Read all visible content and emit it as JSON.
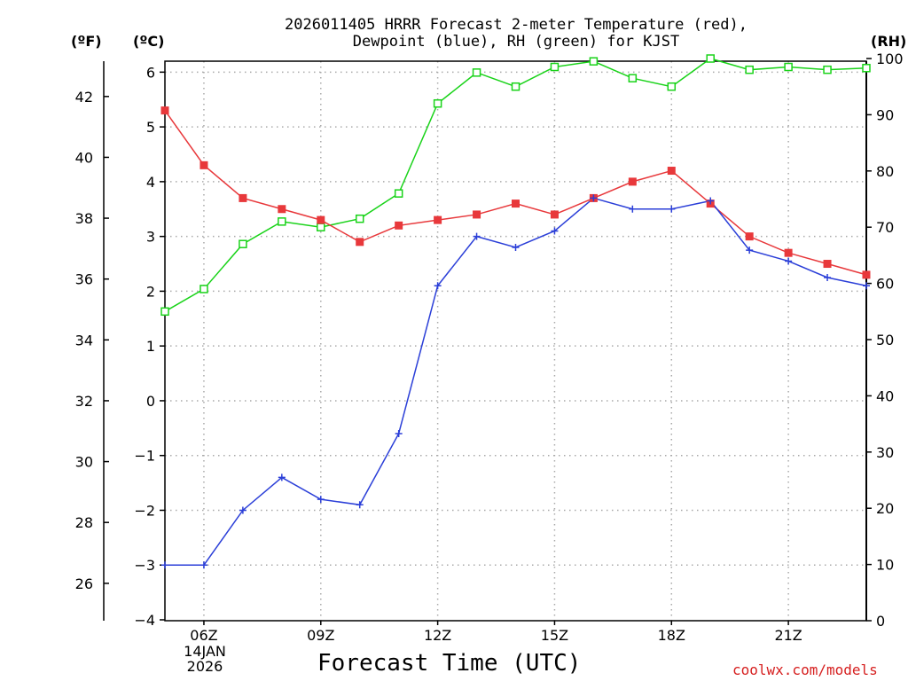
{
  "title": {
    "line1": "2026011405 HRRR Forecast 2-meter Temperature (red),",
    "line2": "Dewpoint (blue), RH (green) for KJST"
  },
  "axis_units": {
    "fahrenheit": "(ºF)",
    "celsius": "(ºC)",
    "rh": "(RH)"
  },
  "x_axis_title": "Forecast Time (UTC)",
  "credit": "coolwx.com/models",
  "date_label": {
    "date": "14JAN",
    "year": "2026"
  },
  "colors": {
    "temperature": "#e8383b",
    "dewpoint": "#2b3fd8",
    "rh": "#19d319",
    "grid": "#a9a9a9",
    "credit": "#d62020"
  },
  "chart_data": {
    "type": "line",
    "x": [
      5,
      6,
      7,
      8,
      9,
      10,
      11,
      12,
      13,
      14,
      15,
      16,
      17,
      18,
      19,
      20,
      21,
      22,
      23
    ],
    "x_unit": "hour UTC",
    "xlim": [
      5,
      23
    ],
    "x_ticks": [
      6,
      9,
      12,
      15,
      18,
      21
    ],
    "x_tick_labels": [
      "06Z",
      "09Z",
      "12Z",
      "15Z",
      "18Z",
      "21Z"
    ],
    "series": [
      {
        "name": "2-meter Temperature",
        "unit": "C",
        "color": "red",
        "marker": "filled-square",
        "values": [
          5.3,
          4.3,
          3.7,
          3.5,
          3.3,
          2.9,
          3.2,
          3.3,
          3.4,
          3.6,
          3.4,
          3.7,
          4.0,
          4.2,
          3.6,
          3.0,
          2.7,
          2.5,
          2.3
        ]
      },
      {
        "name": "Dewpoint",
        "unit": "C",
        "color": "blue",
        "marker": "plus",
        "values": [
          -3.0,
          -3.0,
          -2.0,
          -1.4,
          -1.8,
          -1.9,
          -0.6,
          2.1,
          3.0,
          2.8,
          3.1,
          3.7,
          3.5,
          3.5,
          3.65,
          2.75,
          2.55,
          2.25,
          2.1
        ]
      },
      {
        "name": "Relative Humidity",
        "unit": "%",
        "color": "green",
        "marker": "open-square",
        "values": [
          55,
          59,
          67,
          71,
          70,
          71.5,
          76,
          92,
          97.5,
          95,
          98.5,
          99.5,
          96.5,
          95,
          100,
          98,
          98.5,
          98,
          98.3
        ]
      }
    ],
    "y_left_celsius": {
      "range": [
        -4,
        6.2
      ],
      "ticks": [
        -4,
        -3,
        -2,
        -1,
        0,
        1,
        2,
        3,
        4,
        5,
        6
      ],
      "tick_labels": [
        "−4",
        "−3",
        "−2",
        "−1",
        "0",
        "1",
        "2",
        "3",
        "4",
        "5",
        "6"
      ]
    },
    "y_left_fahrenheit": {
      "ticks": [
        26,
        28,
        30,
        32,
        34,
        36,
        38,
        40,
        42
      ],
      "tick_labels": [
        "26",
        "28",
        "30",
        "32",
        "34",
        "36",
        "38",
        "40",
        "42"
      ]
    },
    "y_right_rh": {
      "range": [
        0,
        100
      ],
      "ticks": [
        0,
        10,
        20,
        30,
        40,
        50,
        60,
        70,
        80,
        90,
        100
      ],
      "tick_labels": [
        "0",
        "10",
        "20",
        "30",
        "40",
        "50",
        "60",
        "70",
        "80",
        "90",
        "100"
      ]
    },
    "grid": true
  }
}
